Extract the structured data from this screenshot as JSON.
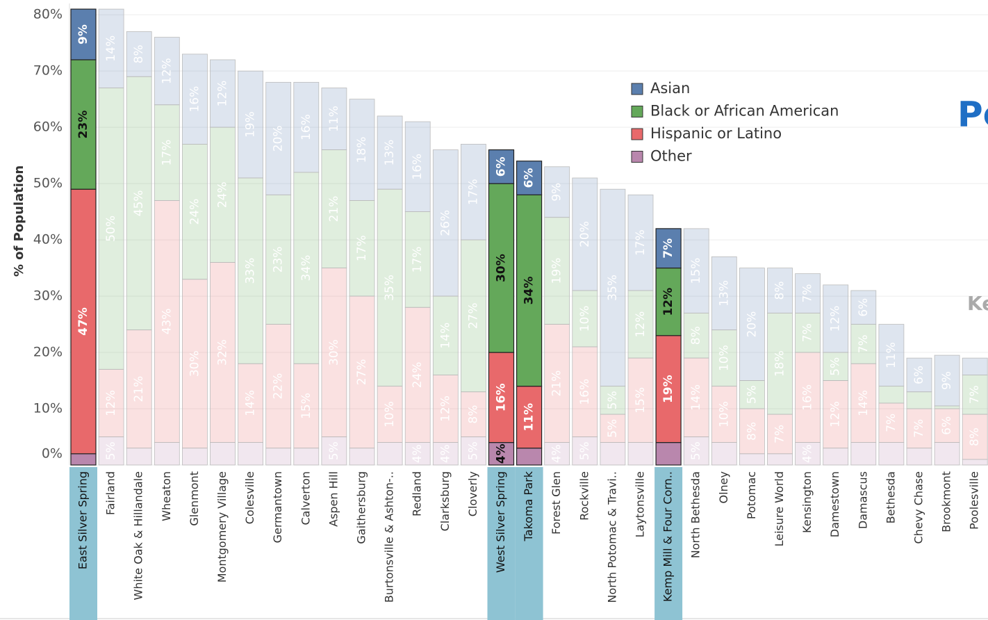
{
  "chart_data": {
    "type": "stacked-bar",
    "y_label": "% of Population",
    "annotations": [
      "Pe",
      "Ke"
    ],
    "categories": [
      "East Silver Spring",
      "Fairland",
      "White Oak & Hillandale",
      "Wheaton",
      "Glenmont",
      "Montgomery Village",
      "Colesville",
      "Germantown",
      "Calverton",
      "Aspen Hill",
      "Gaithersburg",
      "Burtonsville & Ashton-..",
      "Redland",
      "Clarksburg",
      "Cloverly",
      "West Silver Spring",
      "Takoma Park",
      "Forest Glen",
      "Rockville",
      "North Potomac & Travi..",
      "Laytonsville",
      "Kemp Mill & Four Corn..",
      "North Bethesda",
      "Olney",
      "Potomac",
      "Leisure World",
      "Kensington",
      "Damestown",
      "Damascus",
      "Bethesda",
      "Chevy Chase",
      "Brookmont",
      "Poolesville"
    ],
    "highlighted": [
      "East Silver Spring",
      "West Silver Spring",
      "Takoma Park",
      "Kemp Mill & Four Corn.."
    ],
    "series": [
      {
        "name": "Asian",
        "color": "#5b7fae",
        "values": [
          9,
          14,
          8,
          12,
          16,
          12,
          19,
          20,
          16,
          11,
          18,
          13,
          16,
          26,
          17,
          6,
          6,
          9,
          20,
          35,
          17,
          7,
          15,
          13,
          20,
          8,
          7,
          12,
          6,
          11,
          6,
          9,
          3
        ],
        "value_labels": [
          "9%",
          "14%",
          "8%",
          "12%",
          "16%",
          "12%",
          "19%",
          "20%",
          "16%",
          "11%",
          "18%",
          "13%",
          "16%",
          "26%",
          "17%",
          "6%",
          "6%",
          "9%",
          "20%",
          "35%",
          "17%",
          "7%",
          "15%",
          "13%",
          "20%",
          "8%",
          "7%",
          "12%",
          "6%",
          "11%",
          "6%",
          "9%",
          null
        ]
      },
      {
        "name": "Black or African American",
        "color": "#64a85a",
        "values": [
          23,
          50,
          45,
          17,
          24,
          24,
          33,
          23,
          34,
          21,
          17,
          35,
          17,
          14,
          27,
          30,
          34,
          19,
          10,
          5,
          12,
          12,
          8,
          10,
          5,
          18,
          7,
          5,
          7,
          3,
          3,
          0.5,
          7
        ],
        "value_labels": [
          "23%",
          "50%",
          "45%",
          "17%",
          "24%",
          "24%",
          "33%",
          "23%",
          "34%",
          "21%",
          "17%",
          "35%",
          "17%",
          "14%",
          "27%",
          "30%",
          "34%",
          "19%",
          "10%",
          "5%",
          "12%",
          "12%",
          "8%",
          "10%",
          "5%",
          "18%",
          "7%",
          "5%",
          "7%",
          null,
          null,
          null,
          "7%"
        ]
      },
      {
        "name": "Hispanic or Latino",
        "color": "#e8696b",
        "values": [
          47,
          12,
          21,
          43,
          30,
          32,
          14,
          22,
          15,
          30,
          27,
          10,
          24,
          12,
          8,
          16,
          11,
          21,
          16,
          5,
          15,
          19,
          14,
          10,
          8,
          7,
          16,
          12,
          14,
          7,
          7,
          6,
          8
        ],
        "value_labels": [
          "47%",
          "12%",
          "21%",
          "43%",
          "30%",
          "32%",
          "14%",
          "22%",
          "15%",
          "30%",
          "27%",
          "10%",
          "24%",
          "12%",
          "8%",
          "16%",
          "11%",
          "21%",
          "16%",
          "5%",
          "15%",
          "19%",
          "14%",
          "10%",
          "8%",
          "7%",
          "16%",
          "12%",
          "14%",
          "7%",
          "7%",
          "6%",
          "8%"
        ]
      },
      {
        "name": "Other",
        "color": "#b987ad",
        "values": [
          2,
          5,
          3,
          4,
          3,
          4,
          4,
          3,
          3,
          5,
          3,
          4,
          4,
          4,
          5,
          4,
          3,
          4,
          5,
          4,
          4,
          4,
          5,
          4,
          2,
          2,
          4,
          3,
          4,
          4,
          3,
          4,
          1
        ],
        "value_labels": [
          null,
          "5%",
          null,
          null,
          null,
          null,
          null,
          null,
          null,
          "5%",
          null,
          null,
          "4%",
          "4%",
          "5%",
          "4%",
          null,
          "4%",
          "5%",
          null,
          null,
          null,
          "5%",
          null,
          null,
          null,
          "4%",
          null,
          null,
          null,
          null,
          null,
          null
        ]
      }
    ],
    "ylim": [
      0,
      82
    ],
    "yticks": [
      {
        "value": 0,
        "label": "0%"
      },
      {
        "value": 10,
        "label": "10%"
      },
      {
        "value": 20,
        "label": "20%"
      },
      {
        "value": 30,
        "label": "30%"
      },
      {
        "value": 40,
        "label": "40%"
      },
      {
        "value": 50,
        "label": "50%"
      },
      {
        "value": 60,
        "label": "60%"
      },
      {
        "value": 70,
        "label": "70%"
      },
      {
        "value": 80,
        "label": "80%"
      }
    ],
    "grid": true,
    "legend": "top-center"
  }
}
